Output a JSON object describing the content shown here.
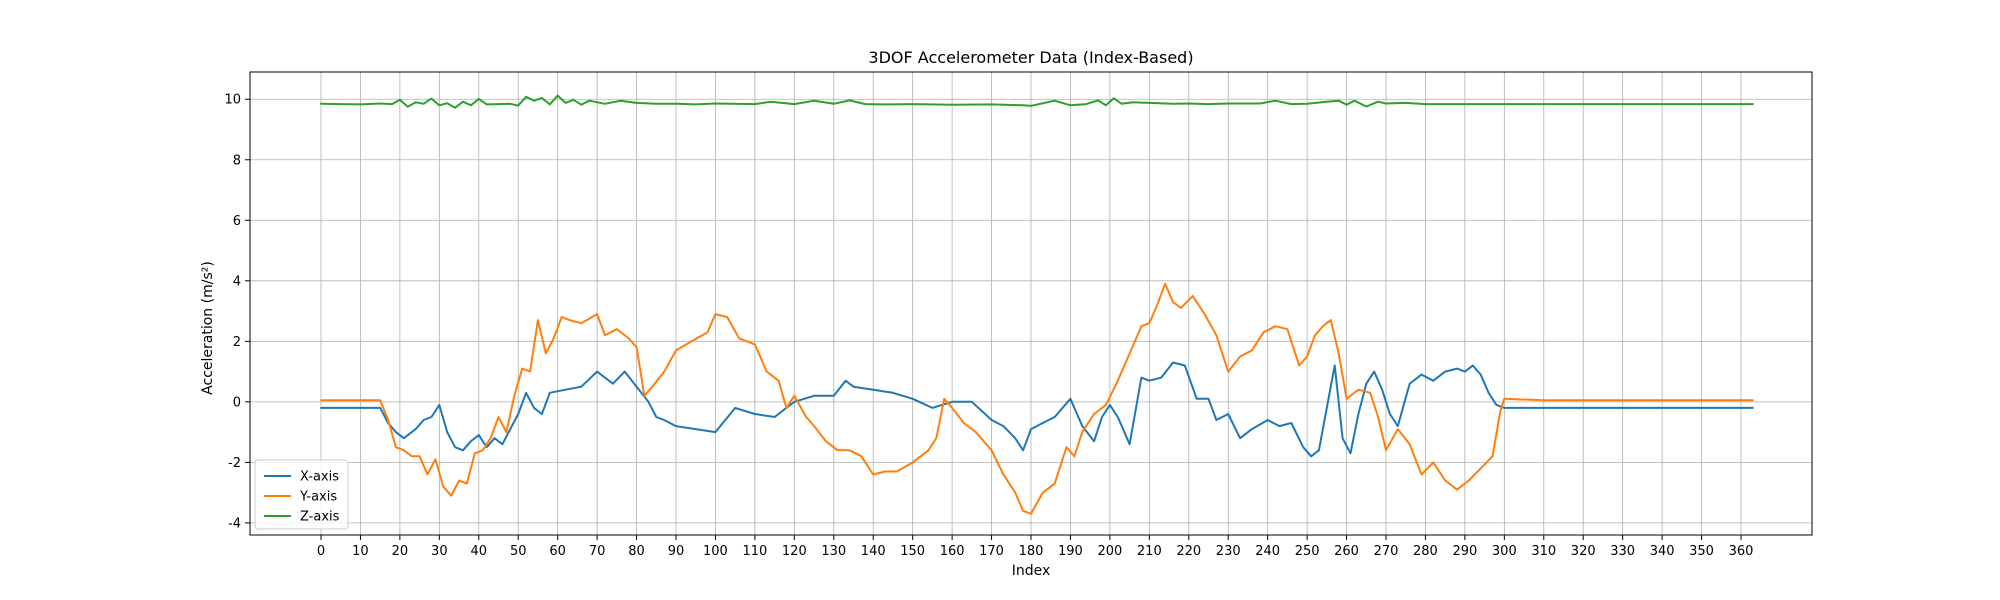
{
  "chart_data": {
    "type": "line",
    "title": "3DOF Accelerometer Data (Index-Based)",
    "xlabel": "Index",
    "ylabel": "Acceleration (m/s²)",
    "xlim": [
      -18,
      378
    ],
    "ylim": [
      -4.4,
      10.9
    ],
    "xticks": [
      0,
      10,
      20,
      30,
      40,
      50,
      60,
      70,
      80,
      90,
      100,
      110,
      120,
      130,
      140,
      150,
      160,
      170,
      180,
      190,
      200,
      210,
      220,
      230,
      240,
      250,
      260,
      270,
      280,
      290,
      300,
      310,
      320,
      330,
      340,
      350,
      360
    ],
    "yticks": [
      -4,
      -2,
      0,
      2,
      4,
      6,
      8,
      10
    ],
    "grid": true,
    "legend_position": "lower-left",
    "series": [
      {
        "name": "X-axis",
        "color": "#1f77b4",
        "x": [
          0,
          5,
          10,
          15,
          17,
          19,
          21,
          24,
          26,
          28,
          30,
          32,
          34,
          36,
          38,
          40,
          42,
          44,
          46,
          48,
          50,
          52,
          54,
          56,
          58,
          62,
          66,
          70,
          74,
          77,
          80,
          83,
          85,
          87,
          90,
          95,
          100,
          105,
          110,
          115,
          120,
          125,
          130,
          133,
          135,
          140,
          145,
          150,
          155,
          160,
          165,
          170,
          173,
          176,
          178,
          180,
          183,
          186,
          190,
          193,
          196,
          198,
          200,
          202,
          205,
          208,
          210,
          213,
          216,
          219,
          222,
          225,
          227,
          230,
          233,
          236,
          240,
          243,
          246,
          249,
          251,
          253,
          255,
          257,
          259,
          261,
          263,
          265,
          267,
          269,
          271,
          273,
          276,
          279,
          282,
          285,
          288,
          290,
          292,
          294,
          296,
          298,
          300,
          310,
          320,
          330,
          340,
          350,
          363
        ],
        "y": [
          -0.2,
          -0.2,
          -0.2,
          -0.2,
          -0.7,
          -1.0,
          -1.2,
          -0.9,
          -0.6,
          -0.5,
          -0.1,
          -1.0,
          -1.5,
          -1.6,
          -1.3,
          -1.1,
          -1.5,
          -1.2,
          -1.4,
          -0.9,
          -0.4,
          0.3,
          -0.2,
          -0.4,
          0.3,
          0.4,
          0.5,
          1.0,
          0.6,
          1.0,
          0.5,
          0.0,
          -0.5,
          -0.6,
          -0.8,
          -0.9,
          -1.0,
          -0.2,
          -0.4,
          -0.5,
          0.0,
          0.2,
          0.2,
          0.7,
          0.5,
          0.4,
          0.3,
          0.1,
          -0.2,
          0.0,
          0.0,
          -0.6,
          -0.8,
          -1.2,
          -1.6,
          -0.9,
          -0.7,
          -0.5,
          0.1,
          -0.8,
          -1.3,
          -0.5,
          -0.1,
          -0.5,
          -1.4,
          0.8,
          0.7,
          0.8,
          1.3,
          1.2,
          0.1,
          0.1,
          -0.6,
          -0.4,
          -1.2,
          -0.9,
          -0.6,
          -0.8,
          -0.7,
          -1.5,
          -1.8,
          -1.6,
          -0.2,
          1.2,
          -1.2,
          -1.7,
          -0.4,
          0.6,
          1.0,
          0.4,
          -0.4,
          -0.8,
          0.6,
          0.9,
          0.7,
          1.0,
          1.1,
          1.0,
          1.2,
          0.9,
          0.3,
          -0.1,
          -0.2,
          -0.2,
          -0.2,
          -0.2,
          -0.2,
          -0.2,
          -0.2
        ]
      },
      {
        "name": "Y-axis",
        "color": "#ff7f0e",
        "x": [
          0,
          5,
          10,
          15,
          17,
          19,
          21,
          23,
          25,
          27,
          29,
          31,
          33,
          35,
          37,
          39,
          41,
          43,
          45,
          47,
          49,
          51,
          53,
          55,
          57,
          59,
          61,
          63,
          66,
          70,
          72,
          75,
          78,
          80,
          82,
          84,
          87,
          90,
          94,
          98,
          100,
          103,
          106,
          110,
          113,
          116,
          118,
          120,
          123,
          125,
          128,
          131,
          134,
          137,
          140,
          143,
          146,
          150,
          154,
          156,
          158,
          160,
          163,
          166,
          170,
          173,
          176,
          178,
          180,
          183,
          186,
          189,
          191,
          193,
          196,
          199,
          202,
          204,
          206,
          208,
          210,
          212,
          214,
          216,
          218,
          221,
          224,
          227,
          230,
          233,
          236,
          239,
          242,
          245,
          248,
          250,
          252,
          254,
          256,
          258,
          260,
          263,
          266,
          268,
          270,
          273,
          276,
          279,
          282,
          285,
          288,
          291,
          294,
          297,
          299,
          300,
          310,
          320,
          330,
          340,
          350,
          363
        ],
        "y": [
          0.05,
          0.05,
          0.05,
          0.05,
          -0.6,
          -1.5,
          -1.6,
          -1.8,
          -1.8,
          -2.4,
          -1.9,
          -2.8,
          -3.1,
          -2.6,
          -2.7,
          -1.7,
          -1.6,
          -1.2,
          -0.5,
          -1.0,
          0.2,
          1.1,
          1.0,
          2.7,
          1.6,
          2.1,
          2.8,
          2.7,
          2.6,
          2.9,
          2.2,
          2.4,
          2.1,
          1.8,
          0.2,
          0.5,
          1.0,
          1.7,
          2.0,
          2.3,
          2.9,
          2.8,
          2.1,
          1.9,
          1.0,
          0.7,
          -0.2,
          0.2,
          -0.5,
          -0.8,
          -1.3,
          -1.6,
          -1.6,
          -1.8,
          -2.4,
          -2.3,
          -2.3,
          -2.0,
          -1.6,
          -1.2,
          0.1,
          -0.2,
          -0.7,
          -1.0,
          -1.6,
          -2.4,
          -3.0,
          -3.6,
          -3.7,
          -3.0,
          -2.7,
          -1.5,
          -1.8,
          -1.0,
          -0.4,
          -0.1,
          0.7,
          1.3,
          1.9,
          2.5,
          2.6,
          3.2,
          3.9,
          3.3,
          3.1,
          3.5,
          2.9,
          2.2,
          1.0,
          1.5,
          1.7,
          2.3,
          2.5,
          2.4,
          1.2,
          1.5,
          2.2,
          2.5,
          2.7,
          1.6,
          0.1,
          0.4,
          0.3,
          -0.5,
          -1.6,
          -0.9,
          -1.4,
          -2.4,
          -2.0,
          -2.6,
          -2.9,
          -2.6,
          -2.2,
          -1.8,
          -0.3,
          0.1,
          0.05,
          0.05,
          0.05,
          0.05,
          0.05,
          0.05
        ]
      },
      {
        "name": "Z-axis",
        "color": "#2ca02c",
        "x": [
          0,
          5,
          10,
          15,
          18,
          20,
          22,
          24,
          26,
          28,
          30,
          32,
          34,
          36,
          38,
          40,
          42,
          48,
          50,
          52,
          54,
          56,
          58,
          60,
          62,
          64,
          66,
          68,
          72,
          76,
          80,
          85,
          90,
          95,
          100,
          104,
          110,
          114,
          120,
          125,
          130,
          134,
          138,
          142,
          150,
          160,
          170,
          178,
          180,
          186,
          190,
          194,
          197,
          199,
          201,
          203,
          206,
          210,
          216,
          220,
          225,
          230,
          238,
          242,
          246,
          250,
          255,
          258,
          260,
          262,
          265,
          268,
          270,
          275,
          280,
          290,
          300,
          310,
          320,
          330,
          340,
          350,
          363
        ],
        "y": [
          9.85,
          9.84,
          9.83,
          9.86,
          9.84,
          9.98,
          9.75,
          9.9,
          9.85,
          10.02,
          9.8,
          9.87,
          9.72,
          9.92,
          9.8,
          10.01,
          9.83,
          9.85,
          9.79,
          10.08,
          9.95,
          10.04,
          9.83,
          10.12,
          9.88,
          9.98,
          9.82,
          9.95,
          9.85,
          9.95,
          9.88,
          9.85,
          9.85,
          9.83,
          9.86,
          9.85,
          9.84,
          9.92,
          9.84,
          9.95,
          9.85,
          9.96,
          9.84,
          9.83,
          9.84,
          9.82,
          9.83,
          9.8,
          9.78,
          9.95,
          9.8,
          9.84,
          9.96,
          9.8,
          10.03,
          9.85,
          9.9,
          9.88,
          9.85,
          9.86,
          9.84,
          9.86,
          9.86,
          9.95,
          9.84,
          9.85,
          9.92,
          9.95,
          9.82,
          9.95,
          9.76,
          9.92,
          9.86,
          9.88,
          9.84,
          9.84,
          9.84,
          9.84,
          9.84,
          9.84,
          9.84,
          9.84,
          9.84
        ]
      }
    ]
  }
}
